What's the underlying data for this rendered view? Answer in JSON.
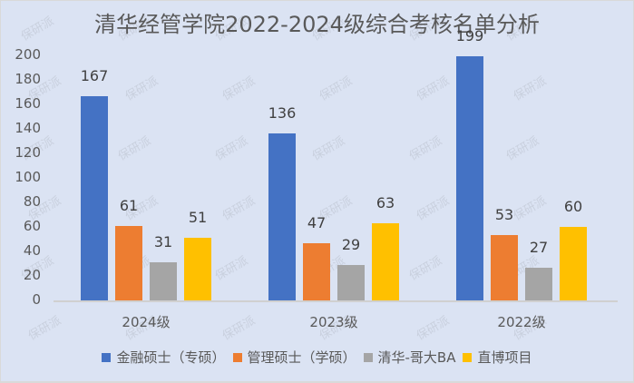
{
  "chart_data": {
    "type": "bar",
    "title": "清华经管学院2022-2024级综合考核名单分析",
    "categories": [
      "2024级",
      "2023级",
      "2022级"
    ],
    "series": [
      {
        "name": "金融硕士（专硕）",
        "color": "#4472c4",
        "values": [
          167,
          136,
          199
        ]
      },
      {
        "name": "管理硕士（学硕）",
        "color": "#ed7d31",
        "values": [
          61,
          47,
          53
        ]
      },
      {
        "name": "清华-哥大BA",
        "color": "#a5a5a5",
        "values": [
          31,
          29,
          27
        ]
      },
      {
        "name": "直博项目",
        "color": "#ffc000",
        "values": [
          51,
          63,
          60
        ]
      }
    ],
    "xlabel": "",
    "ylabel": "",
    "ylim": [
      0,
      200
    ],
    "yticks": [
      "0",
      "20",
      "40",
      "60",
      "80",
      "100",
      "120",
      "140",
      "160",
      "180",
      "200"
    ],
    "grid": false,
    "legend_position": "bottom",
    "data_labels": true
  },
  "watermark": "保研派"
}
